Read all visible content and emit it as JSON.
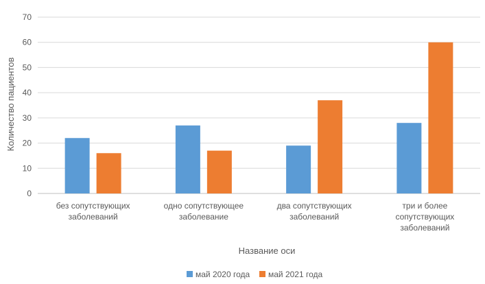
{
  "chart_data": {
    "type": "bar",
    "categories": [
      [
        "без сопутствующих",
        "заболеваний"
      ],
      [
        "одно сопутствующее",
        "заболевание"
      ],
      [
        "два сопутствующих",
        "заболеваний"
      ],
      [
        "три и более",
        "сопутствующих",
        "заболеваний"
      ]
    ],
    "series": [
      {
        "name": "май 2020 года",
        "color": "#5B9BD5",
        "values": [
          22,
          27,
          19,
          28
        ]
      },
      {
        "name": "май 2021 года",
        "color": "#ED7D31",
        "values": [
          16,
          17,
          37,
          60
        ]
      }
    ],
    "xlabel": "Название оси",
    "ylabel": "Количество пациентов",
    "ylim": [
      0,
      70
    ],
    "yticks": [
      0,
      10,
      20,
      30,
      40,
      50,
      60,
      70
    ],
    "grid": true,
    "legend_position": "bottom"
  }
}
